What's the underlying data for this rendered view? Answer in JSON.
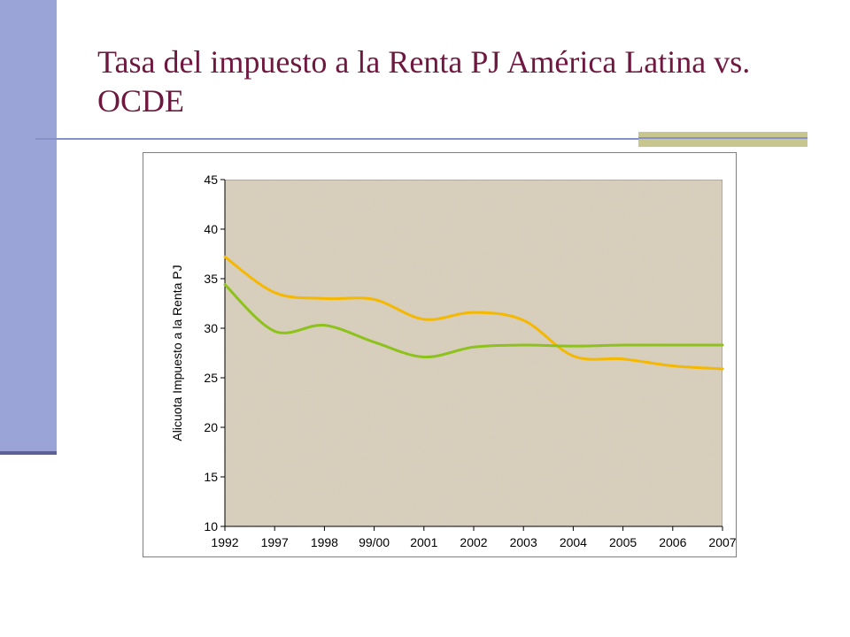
{
  "slide": {
    "title": "Tasa del impuesto a la Renta PJ América Latina vs. OCDE"
  },
  "colors": {
    "accent_bar": "#9aa4d6",
    "title": "#6e1840",
    "plot_bg": "#d9cfbd"
  },
  "chart_data": {
    "type": "line",
    "title": "",
    "xlabel": "",
    "ylabel": "Alicuota Impuesto a la Renta PJ",
    "categories": [
      "1992",
      "1997",
      "1998",
      "99/00",
      "2001",
      "2002",
      "2003",
      "2004",
      "2005",
      "2006",
      "2007"
    ],
    "ylim": [
      10,
      45
    ],
    "yticks": [
      10,
      15,
      20,
      25,
      30,
      35,
      40,
      45
    ],
    "grid": false,
    "legend": "none",
    "series": [
      {
        "color": "#f5b800",
        "values": [
          37.2,
          33.6,
          33.0,
          32.9,
          30.9,
          31.6,
          30.8,
          27.2,
          26.9,
          26.2,
          25.9
        ]
      },
      {
        "color": "#8cc21a",
        "values": [
          34.4,
          29.7,
          30.3,
          28.6,
          27.1,
          28.1,
          28.3,
          28.2,
          28.3,
          28.3,
          28.3
        ]
      }
    ]
  }
}
